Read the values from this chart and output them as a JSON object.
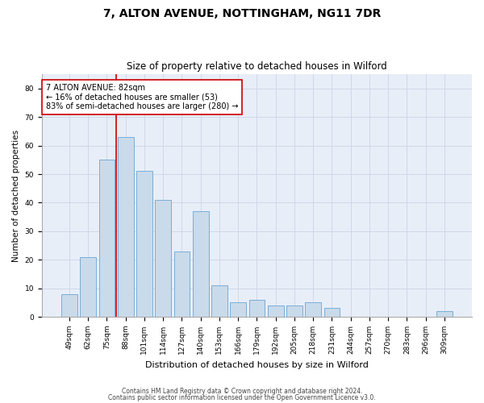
{
  "title1": "7, ALTON AVENUE, NOTTINGHAM, NG11 7DR",
  "title2": "Size of property relative to detached houses in Wilford",
  "xlabel": "Distribution of detached houses by size in Wilford",
  "ylabel": "Number of detached properties",
  "categories": [
    "49sqm",
    "62sqm",
    "75sqm",
    "88sqm",
    "101sqm",
    "114sqm",
    "127sqm",
    "140sqm",
    "153sqm",
    "166sqm",
    "179sqm",
    "192sqm",
    "205sqm",
    "218sqm",
    "231sqm",
    "244sqm",
    "257sqm",
    "270sqm",
    "283sqm",
    "296sqm",
    "309sqm"
  ],
  "values": [
    8,
    21,
    55,
    63,
    51,
    41,
    23,
    37,
    11,
    5,
    6,
    4,
    4,
    5,
    3,
    0,
    0,
    0,
    0,
    0,
    2
  ],
  "bar_color": "#c9daea",
  "bar_edge_color": "#7aaed6",
  "vline_color": "#cc0000",
  "vline_pos": 2.5,
  "annotation_text": "7 ALTON AVENUE: 82sqm\n← 16% of detached houses are smaller (53)\n83% of semi-detached houses are larger (280) →",
  "annotation_box_color": "#ffffff",
  "annotation_box_edge": "#cc0000",
  "ylim": [
    0,
    85
  ],
  "yticks": [
    0,
    10,
    20,
    30,
    40,
    50,
    60,
    70,
    80
  ],
  "grid_color": "#d0d8e8",
  "bg_color": "#e8eef8",
  "footer1": "Contains HM Land Registry data © Crown copyright and database right 2024.",
  "footer2": "Contains public sector information licensed under the Open Government Licence v3.0.",
  "title1_fontsize": 10,
  "title2_fontsize": 8.5,
  "xlabel_fontsize": 8,
  "ylabel_fontsize": 7.5,
  "tick_fontsize": 6.5,
  "annotation_fontsize": 7,
  "footer_fontsize": 5.5
}
